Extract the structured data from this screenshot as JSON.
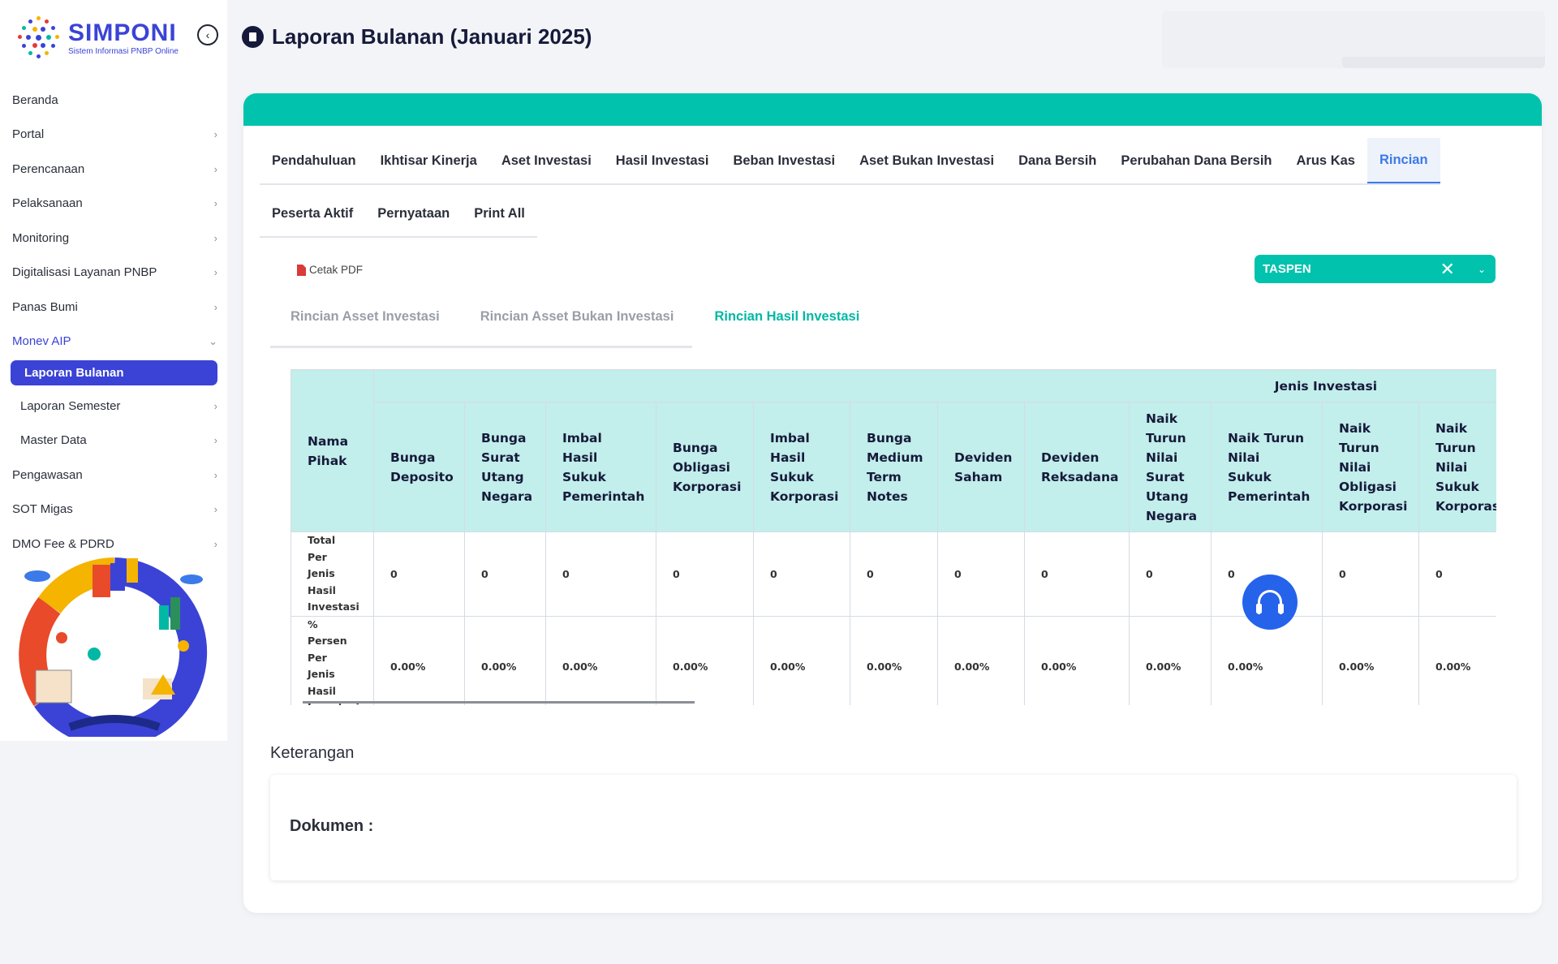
{
  "logo": {
    "title": "SIMPONI",
    "subtitle": "Sistem Informasi PNBP Online"
  },
  "sidebar": {
    "items": [
      {
        "label": "Beranda",
        "chevron": false
      },
      {
        "label": "Portal",
        "chevron": true
      },
      {
        "label": "Perencanaan",
        "chevron": true
      },
      {
        "label": "Pelaksanaan",
        "chevron": true
      },
      {
        "label": "Monitoring",
        "chevron": true
      },
      {
        "label": "Digitalisasi Layanan PNBP",
        "chevron": true
      },
      {
        "label": "Panas Bumi",
        "chevron": true
      },
      {
        "label": "Monev AIP",
        "chevron": true,
        "expanded": true
      },
      {
        "label": "Laporan Bulanan",
        "active": true
      },
      {
        "label": "Laporan Semester",
        "chevron": true,
        "sub": true
      },
      {
        "label": "Master Data",
        "chevron": true,
        "sub": true
      },
      {
        "label": "Pengawasan",
        "chevron": true
      },
      {
        "label": "SOT Migas",
        "chevron": true
      },
      {
        "label": "DMO Fee & PDRD",
        "chevron": true
      }
    ],
    "chevron_right": "›",
    "chevron_down": "⌄",
    "collapse_icon": "‹"
  },
  "header": {
    "title": "Laporan Bulanan (Januari 2025)"
  },
  "colors": {
    "primary": "#3b43d6",
    "teal": "#00c2ad",
    "table_header": "#c2eeeb",
    "active_tab": "#3b7ae8"
  },
  "tabs": {
    "row1": [
      "Pendahuluan",
      "Ikhtisar Kinerja",
      "Aset Investasi",
      "Hasil Investasi",
      "Beban Investasi",
      "Aset Bukan Investasi",
      "Dana Bersih",
      "Perubahan Dana Bersih",
      "Arus Kas",
      "Rincian"
    ],
    "row2": [
      "Peserta Aktif",
      "Pernyataan",
      "Print All"
    ],
    "active": "Rincian"
  },
  "toolbar": {
    "cetak_label": "Cetak PDF",
    "select_value": "TASPEN",
    "clear_icon": "✕",
    "caret_icon": "⌄"
  },
  "subtabs": {
    "items": [
      "Rincian Asset Investasi",
      "Rincian Asset Bukan Investasi",
      "Rincian Hasil Investasi"
    ],
    "active": "Rincian Hasil Investasi"
  },
  "table": {
    "name_header": "Nama Pihak",
    "group_header": "Jenis Investasi",
    "columns": [
      "Bunga Deposito",
      "Bunga Surat Utang Negara",
      "Imbal Hasil Sukuk Pemerintah",
      "Bunga Obligasi Korporasi",
      "Imbal Hasil Sukuk Korporasi",
      "Bunga Medium Term Notes",
      "Deviden Saham",
      "Deviden Reksadana",
      "Naik Turun Nilai Surat Utang Negara",
      "Naik Turun Nilai Sukuk Pemerintah",
      "Naik Turun Nilai Obligasi Korporasi",
      "Naik Turun Nilai Sukuk Korporasi"
    ],
    "rows": [
      {
        "label": "Total Per Jenis Hasil Investasi",
        "values": [
          "0",
          "0",
          "0",
          "0",
          "0",
          "0",
          "0",
          "0",
          "0",
          "0",
          "0",
          "0"
        ]
      },
      {
        "label": "% Persen Per Jenis Hasil Investasi",
        "values": [
          "0.00%",
          "0.00%",
          "0.00%",
          "0.00%",
          "0.00%",
          "0.00%",
          "0.00%",
          "0.00%",
          "0.00%",
          "0.00%",
          "0.00%",
          "0.00%"
        ]
      }
    ]
  },
  "keterangan": {
    "title": "Keterangan",
    "dokumen_label": "Dokumen :"
  }
}
